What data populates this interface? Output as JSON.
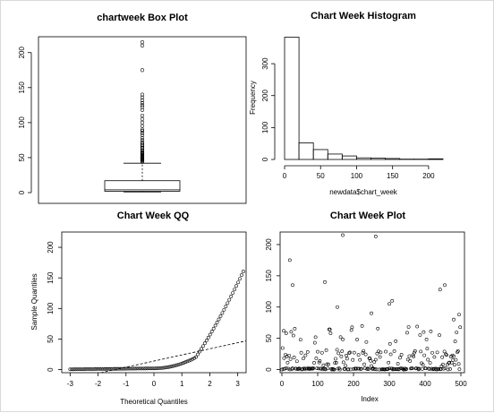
{
  "chart_data": [
    {
      "type": "box",
      "title": "chartweek  Box Plot",
      "ylim": [
        0,
        215
      ],
      "y_ticks": [
        0,
        50,
        100,
        150,
        200
      ],
      "stats": {
        "min": 1,
        "q1": 2,
        "median": 4,
        "q3": 17,
        "whisker_high": 42
      },
      "outliers": [
        44,
        45,
        46,
        47,
        48,
        49,
        50,
        51,
        52,
        53,
        54,
        55,
        56,
        57,
        58,
        60,
        62,
        64,
        66,
        68,
        70,
        72,
        75,
        78,
        82,
        85,
        88,
        90,
        95,
        100,
        105,
        110,
        118,
        122,
        125,
        128,
        132,
        136,
        140,
        175,
        210,
        215
      ]
    },
    {
      "type": "bar",
      "title": "Chart Week Histogram",
      "xlabel": "newdata$chart_week",
      "ylabel": "Frequency",
      "bin_edges": [
        0,
        20,
        40,
        60,
        80,
        100,
        120,
        140,
        160,
        180,
        200,
        220
      ],
      "values": [
        383,
        52,
        31,
        17,
        11,
        5,
        4,
        3,
        1,
        1,
        2
      ],
      "xlim": [
        0,
        220
      ],
      "ylim": [
        0,
        390
      ],
      "x_ticks": [
        0,
        50,
        100,
        150,
        200
      ],
      "y_ticks": [
        0,
        100,
        200,
        300
      ]
    },
    {
      "type": "scatter",
      "title": "Chart Week QQ",
      "xlabel": "Theoretical Quantiles",
      "ylabel": "Sample Quantiles",
      "xlim": [
        -3.3,
        3.3
      ],
      "ylim": [
        -5,
        225
      ],
      "x_ticks": [
        -3,
        -2,
        -1,
        0,
        1,
        2,
        3
      ],
      "y_ticks": [
        0,
        50,
        100,
        150,
        200
      ],
      "reference_line": {
        "x": [
          -1.9,
          3.3
        ],
        "y": [
          -5,
          47
        ]
      }
    },
    {
      "type": "scatter",
      "title": "Chart Week Plot",
      "xlabel": "Index",
      "ylabel": "",
      "xlim": [
        -5,
        510
      ],
      "ylim": [
        -5,
        220
      ],
      "x_ticks": [
        0,
        100,
        200,
        300,
        400,
        500
      ],
      "y_ticks": [
        0,
        50,
        100,
        150,
        200
      ],
      "highlights": [
        [
          5,
          62
        ],
        [
          12,
          58
        ],
        [
          22,
          175
        ],
        [
          30,
          135
        ],
        [
          120,
          140
        ],
        [
          155,
          100
        ],
        [
          170,
          215
        ],
        [
          250,
          90
        ],
        [
          262,
          213
        ],
        [
          300,
          105
        ],
        [
          308,
          110
        ],
        [
          442,
          128
        ],
        [
          455,
          135
        ],
        [
          480,
          80
        ],
        [
          495,
          88
        ]
      ]
    }
  ]
}
